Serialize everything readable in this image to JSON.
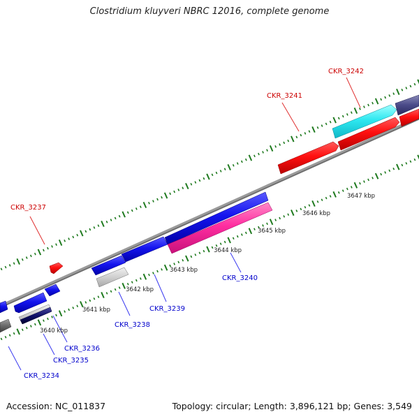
{
  "title": "Clostridium kluyveri NBRC 12016, complete genome",
  "footer": {
    "accession": "Accession: NC_011837",
    "summary": "Topology: circular; Length: 3,896,121 bp; Genes: 3,549"
  },
  "colors": {
    "backbone": "#808080",
    "tick": "#1f7a1f",
    "forward_label": "#cc0000",
    "reverse_label": "#0000cc",
    "position_label": "#222222"
  },
  "position_labels": [
    "3640 kbp",
    "3641 kbp",
    "3642 kbp",
    "3643 kbp",
    "3644 kbp",
    "3645 kbp",
    "3646 kbp",
    "3647 kbp"
  ],
  "genes": [
    {
      "name": "CKR_3234",
      "strand": "reverse",
      "color": "#0000cc"
    },
    {
      "name": "CKR_3235",
      "strand": "reverse",
      "color": "#0000cc"
    },
    {
      "name": "CKR_3236",
      "strand": "reverse",
      "color": "#0000cc"
    },
    {
      "name": "CKR_3237",
      "strand": "forward",
      "color": "#cc0000"
    },
    {
      "name": "CKR_3238",
      "strand": "reverse",
      "color": "#0000cc"
    },
    {
      "name": "CKR_3239",
      "strand": "reverse",
      "color": "#0000cc"
    },
    {
      "name": "CKR_3240",
      "strand": "reverse",
      "color": "#0000cc"
    },
    {
      "name": "CKR_3241",
      "strand": "forward",
      "color": "#cc0000"
    },
    {
      "name": "CKR_3242",
      "strand": "forward",
      "color": "#cc0000"
    }
  ]
}
